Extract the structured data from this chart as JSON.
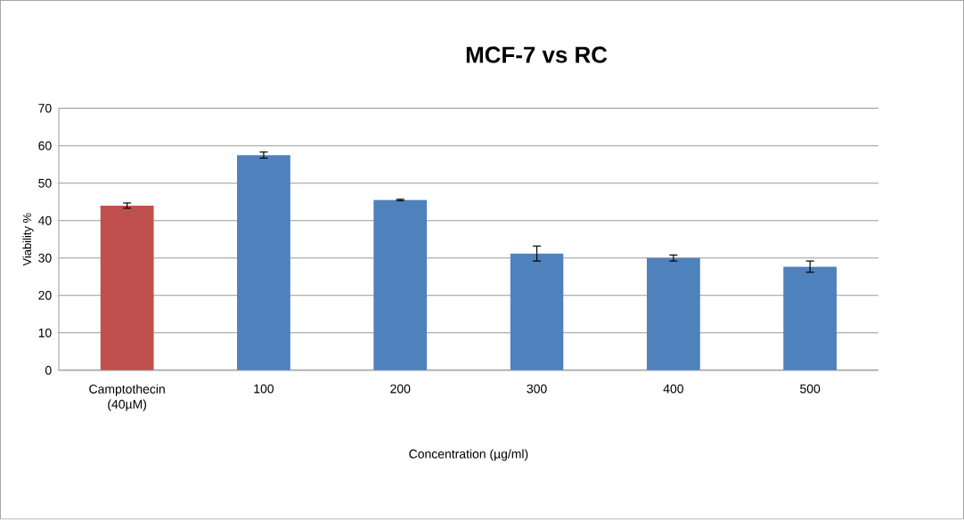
{
  "chart_data": {
    "type": "bar",
    "title": "MCF-7 vs RC",
    "xlabel": "Concentration (µg/ml)",
    "ylabel": "Viability %",
    "categories": [
      "Camptothecin (40µM)",
      "100",
      "200",
      "300",
      "400",
      "500"
    ],
    "values": [
      44,
      57.5,
      45.5,
      31.2,
      30,
      27.7
    ],
    "colors": [
      "#c0504d",
      "#4f81bd",
      "#4f81bd",
      "#4f81bd",
      "#4f81bd",
      "#4f81bd"
    ],
    "errors": [
      0.7,
      0.8,
      0.2,
      2,
      0.8,
      1.5
    ],
    "ylim": [
      0,
      70
    ],
    "yticks": [
      0,
      10,
      20,
      30,
      40,
      50,
      60,
      70
    ],
    "grid": "y"
  }
}
